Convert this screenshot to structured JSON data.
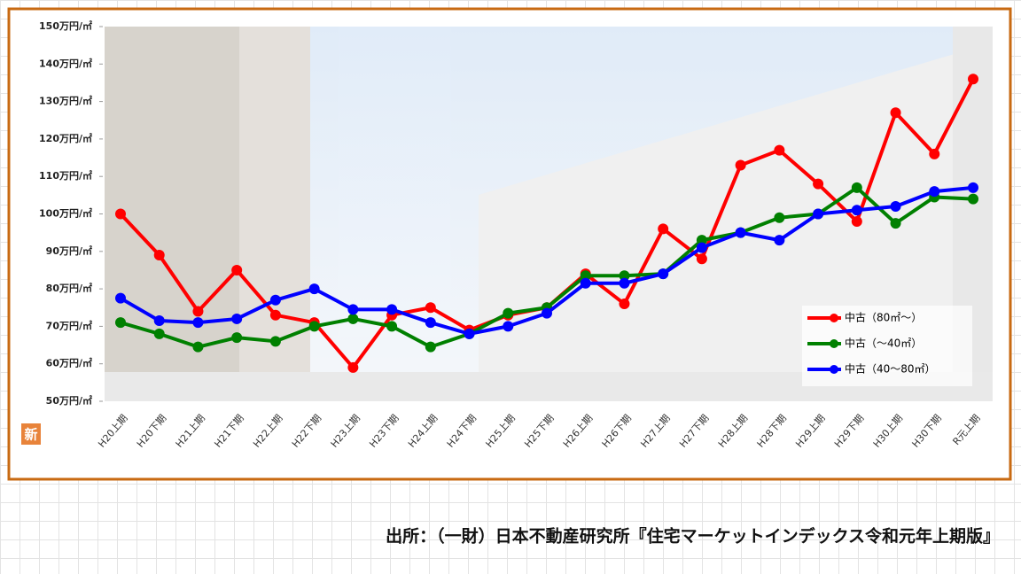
{
  "chart_data": {
    "type": "line",
    "categories": [
      "H20上期",
      "H20下期",
      "H21上期",
      "H21下期",
      "H22上期",
      "H22下期",
      "H23上期",
      "H23下期",
      "H24上期",
      "H24下期",
      "H25上期",
      "H25下期",
      "H26上期",
      "H26下期",
      "H27上期",
      "H27下期",
      "H28上期",
      "H28下期",
      "H29上期",
      "H29下期",
      "H30上期",
      "H30下期",
      "R元上期"
    ],
    "series": [
      {
        "name": "中古（80㎡～）",
        "color": "#ff0000",
        "values": [
          100,
          89,
          74,
          85,
          73,
          71,
          59,
          73,
          75,
          69,
          73,
          75,
          84,
          76,
          96,
          88,
          113,
          117,
          108,
          98,
          127,
          116,
          136
        ]
      },
      {
        "name": "中古（～40㎡）",
        "color": "#008000",
        "values": [
          71,
          68,
          64.5,
          67,
          66,
          70,
          72,
          70,
          64.5,
          68,
          73.5,
          75,
          83.5,
          83.5,
          84,
          93,
          95,
          99,
          100,
          107,
          97.5,
          104.5,
          104
        ]
      },
      {
        "name": "中古（40～80㎡）",
        "color": "#0000ff",
        "values": [
          77.5,
          71.5,
          71,
          72,
          77,
          80,
          74.5,
          74.5,
          71,
          68,
          70,
          73.5,
          81.5,
          81.5,
          84,
          91,
          95,
          93,
          100,
          101,
          102,
          106,
          107
        ]
      }
    ],
    "ylim": [
      50,
      150
    ],
    "yticks": [
      {
        "value": 50,
        "label": "50万円/㎡"
      },
      {
        "value": 60,
        "label": "60万円/㎡"
      },
      {
        "value": 70,
        "label": "70万円/㎡"
      },
      {
        "value": 80,
        "label": "80万円/㎡"
      },
      {
        "value": 90,
        "label": "90万円/㎡"
      },
      {
        "value": 100,
        "label": "100万円/㎡"
      },
      {
        "value": 110,
        "label": "110万円/㎡"
      },
      {
        "value": 120,
        "label": "120万円/㎡"
      },
      {
        "value": 130,
        "label": "130万円/㎡"
      },
      {
        "value": 140,
        "label": "140万円/㎡"
      },
      {
        "value": 150,
        "label": "150万円/㎡"
      }
    ],
    "grid": false,
    "legend": "lower right"
  },
  "badge": "新",
  "source": "出所：（一財）日本不動産研究所『住宅マーケットインデックス令和元年上期版』"
}
